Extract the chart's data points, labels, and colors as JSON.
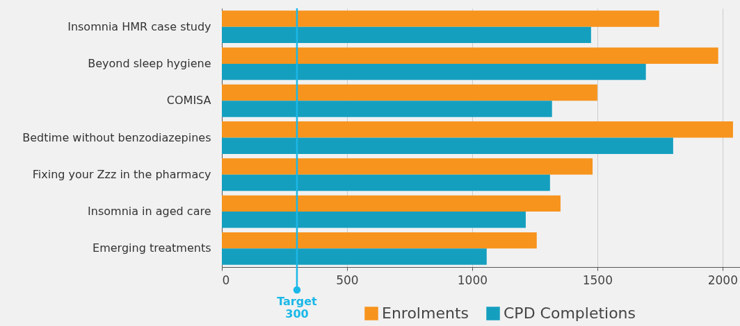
{
  "chart_data": {
    "type": "bar",
    "orientation": "horizontal",
    "categories": [
      "Insomnia HMR case study",
      "Beyond sleep hygiene",
      "COMISA",
      "Bedtime without benzodiazepines",
      "Fixing your Zzz in the pharmacy",
      "Insomnia in aged care",
      "Emerging treatments"
    ],
    "series": [
      {
        "name": "Enrolments",
        "color": "#f7941d",
        "values": [
          1747,
          1983,
          1500,
          2042,
          1481,
          1353,
          1258
        ]
      },
      {
        "name": "CPD Completions",
        "color": "#159fbf",
        "values": [
          1475,
          1694,
          1319,
          1803,
          1311,
          1214,
          1058
        ]
      }
    ],
    "xlim": [
      0,
      2070
    ],
    "xticks": [
      0,
      500,
      1000,
      1500,
      2000
    ],
    "grid": "x",
    "legend": "bottom",
    "ref_lines": [
      {
        "axis": "x",
        "value": 300,
        "label": "Target\n300",
        "color": "#1ab8e8"
      }
    ]
  }
}
